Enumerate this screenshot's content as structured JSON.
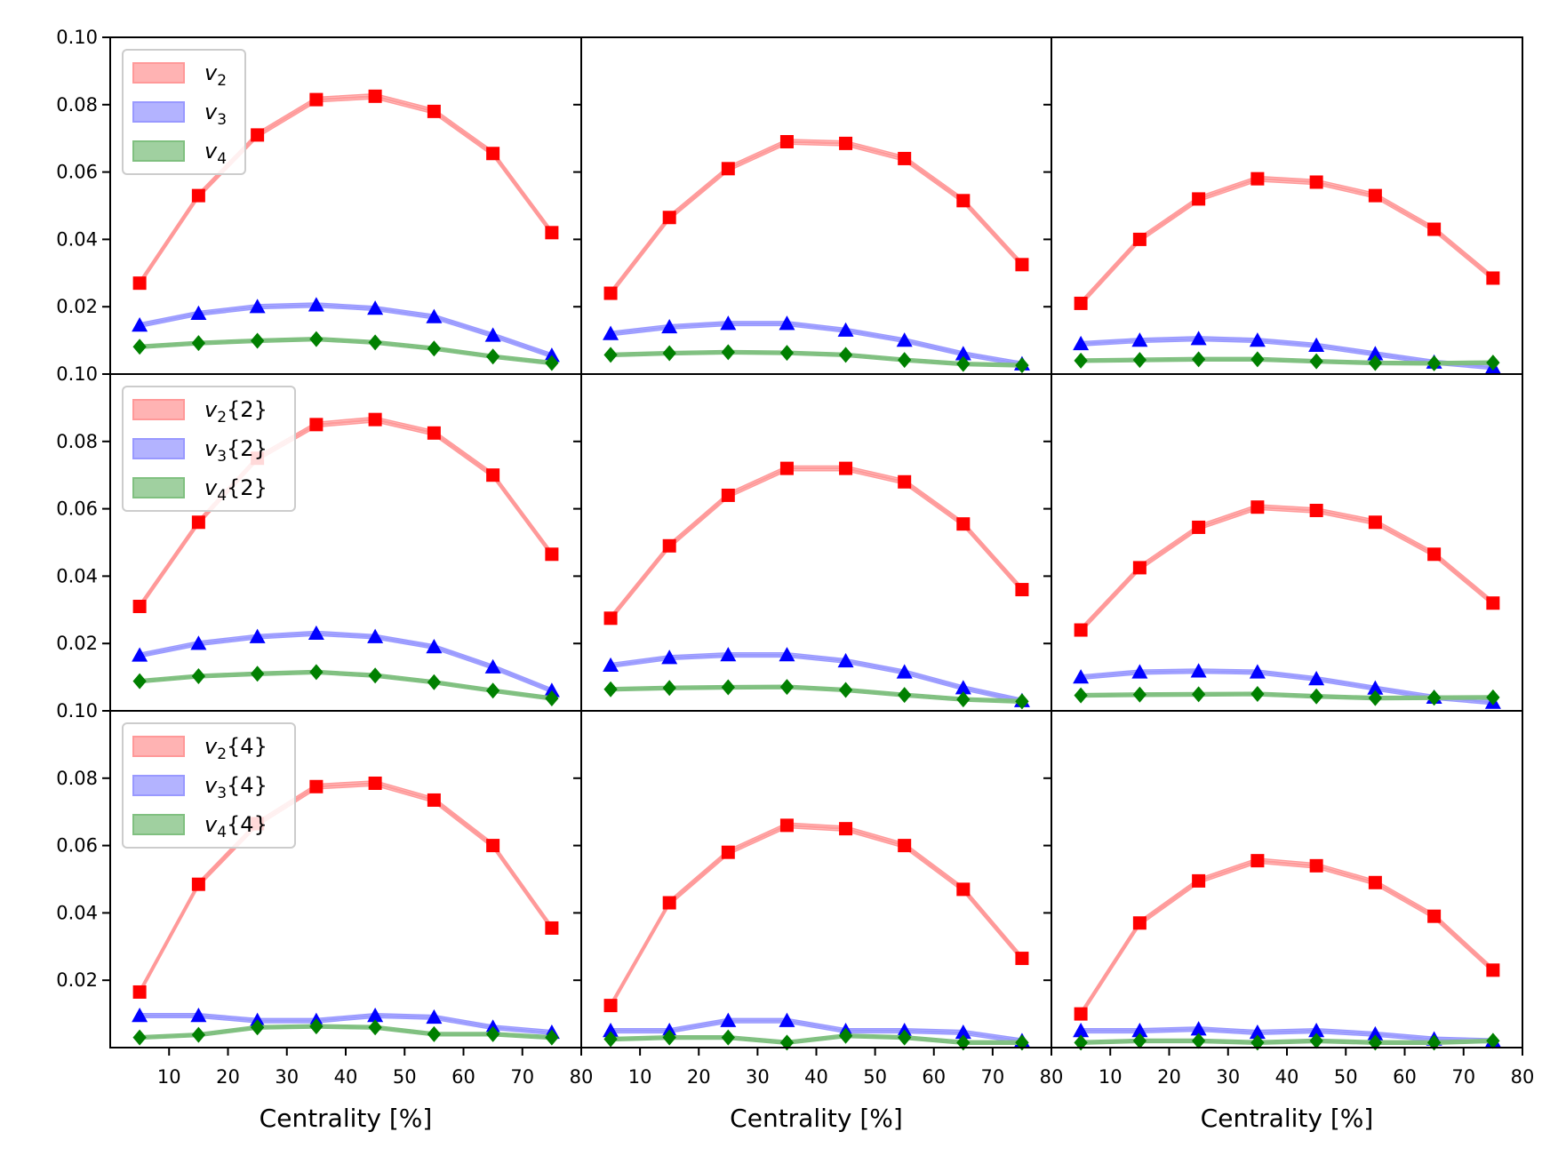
{
  "colors": {
    "v2": "#ff0000",
    "v3": "#0000ff",
    "v4": "#008000",
    "v2_band": "#ff9999",
    "v3_band": "#9999ff",
    "v4_band": "#80c080"
  },
  "chart_data": {
    "type": "line",
    "layout": "3x3 grid of panels, shared axes, no gaps",
    "x": [
      5,
      15,
      25,
      35,
      45,
      55,
      65,
      75
    ],
    "xlim": [
      0,
      80
    ],
    "ylim": [
      0,
      0.1
    ],
    "xlabel": "Centrality [%]",
    "xticks": [
      "10",
      "20",
      "30",
      "40",
      "50",
      "60",
      "70",
      "80"
    ],
    "xtick_first_label_bottom_row": "80",
    "yticks": [
      "0.02",
      "0.04",
      "0.06",
      "0.08",
      "0.10"
    ],
    "grid": false,
    "legend_position": "upper-left (first column)",
    "rows": [
      {
        "legend": [
          {
            "sym": "v",
            "sub": "2",
            "suffix": ""
          },
          {
            "sym": "v",
            "sub": "3",
            "suffix": ""
          },
          {
            "sym": "v",
            "sub": "4",
            "suffix": ""
          }
        ],
        "panels": [
          {
            "v2": [
              0.027,
              0.053,
              0.071,
              0.0815,
              0.0825,
              0.078,
              0.0655,
              0.042
            ],
            "v3": [
              0.0145,
              0.018,
              0.02,
              0.0205,
              0.0195,
              0.017,
              0.0115,
              0.0055
            ],
            "v4": [
              0.0081,
              0.0092,
              0.0099,
              0.0104,
              0.0094,
              0.0076,
              0.0052,
              0.0033
            ]
          },
          {
            "v2": [
              0.024,
              0.0465,
              0.061,
              0.069,
              0.0685,
              0.064,
              0.0515,
              0.0325
            ],
            "v3": [
              0.012,
              0.014,
              0.015,
              0.015,
              0.013,
              0.01,
              0.006,
              0.003
            ],
            "v4": [
              0.0057,
              0.0062,
              0.0065,
              0.0063,
              0.0057,
              0.0042,
              0.003,
              0.0026
            ]
          },
          {
            "v2": [
              0.021,
              0.04,
              0.052,
              0.058,
              0.057,
              0.053,
              0.043,
              0.0285
            ],
            "v3": [
              0.009,
              0.01,
              0.0105,
              0.01,
              0.0085,
              0.006,
              0.0035,
              0.002
            ],
            "v4": [
              0.004,
              0.0042,
              0.0044,
              0.0044,
              0.0038,
              0.0033,
              0.0032,
              0.0034
            ]
          }
        ]
      },
      {
        "legend": [
          {
            "sym": "v",
            "sub": "2",
            "suffix": "{2}"
          },
          {
            "sym": "v",
            "sub": "3",
            "suffix": "{2}"
          },
          {
            "sym": "v",
            "sub": "4",
            "suffix": "{2}"
          }
        ],
        "panels": [
          {
            "v2": [
              0.031,
              0.056,
              0.075,
              0.085,
              0.0865,
              0.0825,
              0.07,
              0.0465
            ],
            "v3": [
              0.0165,
              0.02,
              0.022,
              0.023,
              0.022,
              0.019,
              0.013,
              0.006
            ],
            "v4": [
              0.0088,
              0.0103,
              0.011,
              0.0115,
              0.0105,
              0.0085,
              0.006,
              0.0037
            ]
          },
          {
            "v2": [
              0.0275,
              0.049,
              0.064,
              0.072,
              0.072,
              0.068,
              0.0555,
              0.036
            ],
            "v3": [
              0.0135,
              0.0158,
              0.0166,
              0.0166,
              0.0148,
              0.0115,
              0.0068,
              0.003
            ],
            "v4": [
              0.0064,
              0.0068,
              0.007,
              0.0071,
              0.0062,
              0.0047,
              0.0034,
              0.0028
            ]
          },
          {
            "v2": [
              0.024,
              0.0425,
              0.0545,
              0.0605,
              0.0595,
              0.056,
              0.0465,
              0.032
            ],
            "v3": [
              0.01,
              0.0115,
              0.0118,
              0.0115,
              0.0095,
              0.0067,
              0.004,
              0.0025
            ],
            "v4": [
              0.0046,
              0.0048,
              0.0049,
              0.005,
              0.0043,
              0.0038,
              0.0039,
              0.004
            ]
          }
        ]
      },
      {
        "legend": [
          {
            "sym": "v",
            "sub": "2",
            "suffix": "{4}"
          },
          {
            "sym": "v",
            "sub": "3",
            "suffix": "{4}"
          },
          {
            "sym": "v",
            "sub": "4",
            "suffix": "{4}"
          }
        ],
        "panels": [
          {
            "v2": [
              0.0165,
              0.0485,
              0.0665,
              0.0775,
              0.0785,
              0.0735,
              0.06,
              0.0355
            ],
            "v3": [
              0.0095,
              0.0095,
              0.008,
              0.008,
              0.0095,
              0.009,
              0.006,
              0.0045
            ],
            "v4": [
              0.003,
              0.0038,
              0.006,
              0.0063,
              0.006,
              0.004,
              0.004,
              0.003
            ]
          },
          {
            "v2": [
              0.0125,
              0.043,
              0.058,
              0.066,
              0.065,
              0.06,
              0.047,
              0.0265
            ],
            "v3": [
              0.005,
              0.005,
              0.008,
              0.008,
              0.005,
              0.005,
              0.0045,
              0.002
            ],
            "v4": [
              0.0025,
              0.003,
              0.003,
              0.0015,
              0.0035,
              0.003,
              0.0015,
              0.0015
            ]
          },
          {
            "v2": [
              0.01,
              0.037,
              0.0495,
              0.0555,
              0.054,
              0.049,
              0.039,
              0.023
            ],
            "v3": [
              0.005,
              0.005,
              0.0055,
              0.0045,
              0.005,
              0.004,
              0.0025,
              0.002
            ],
            "v4": [
              0.0015,
              0.002,
              0.002,
              0.0015,
              0.002,
              0.0015,
              0.0015,
              0.002
            ]
          }
        ]
      }
    ]
  }
}
